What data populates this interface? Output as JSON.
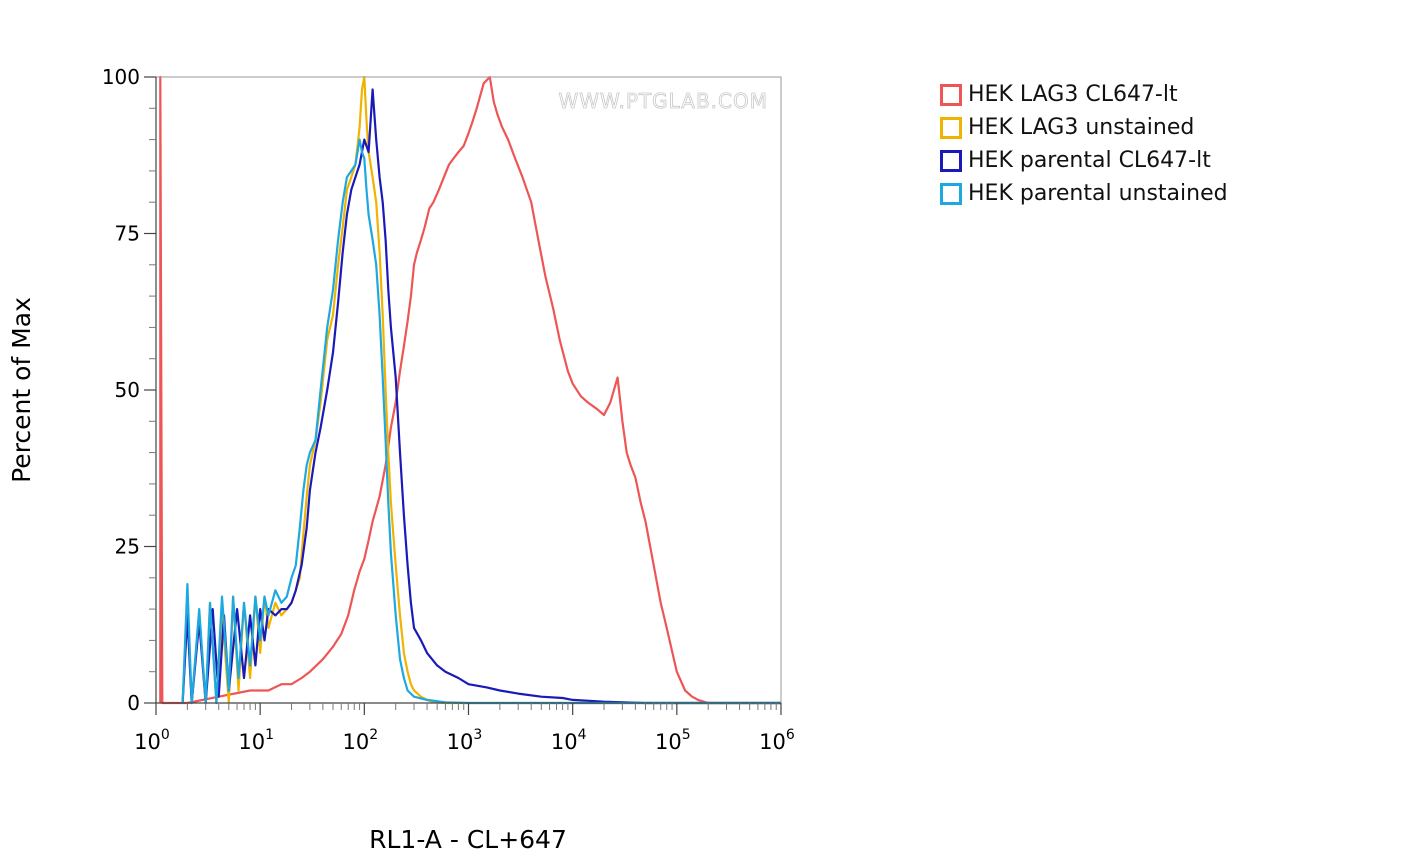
{
  "chart_data": {
    "type": "line",
    "watermark": "WWW.PTGLAB.COM",
    "xlabel": "RL1-A - CL+647",
    "ylabel": "Percent of Max",
    "xscale": "log",
    "xlim": [
      1,
      1000000
    ],
    "ylim": [
      0,
      100
    ],
    "xticks": [
      {
        "value": 1,
        "base": "10",
        "exp": "0"
      },
      {
        "value": 10,
        "base": "10",
        "exp": "1"
      },
      {
        "value": 100,
        "base": "10",
        "exp": "2"
      },
      {
        "value": 1000,
        "base": "10",
        "exp": "3"
      },
      {
        "value": 10000,
        "base": "10",
        "exp": "4"
      },
      {
        "value": 100000,
        "base": "10",
        "exp": "5"
      },
      {
        "value": 1000000,
        "base": "10",
        "exp": "6"
      }
    ],
    "yticks": [
      {
        "value": 0,
        "label": "0"
      },
      {
        "value": 25,
        "label": "25"
      },
      {
        "value": 50,
        "label": "50"
      },
      {
        "value": 75,
        "label": "75"
      },
      {
        "value": 100,
        "label": "100"
      }
    ],
    "grid": false,
    "legend_position": "right",
    "series": [
      {
        "name": "HEK LAG3 CL647-lt",
        "color": "#ee5555",
        "x": [
          1.1,
          1.1,
          1.15,
          2,
          4,
          8,
          12,
          16,
          20,
          25,
          30,
          40,
          50,
          60,
          70,
          80,
          90,
          100,
          110,
          120,
          140,
          160,
          180,
          200,
          220,
          240,
          260,
          280,
          300,
          320,
          350,
          380,
          420,
          460,
          520,
          580,
          650,
          720,
          800,
          900,
          1000,
          1100,
          1200,
          1400,
          1600,
          1750,
          1900,
          2100,
          2400,
          2800,
          3300,
          4000,
          4800,
          5500,
          6500,
          7500,
          9000,
          10000,
          12000,
          14000,
          17000,
          20000,
          23000,
          27000,
          30000,
          33000,
          36000,
          40000,
          45000,
          50000,
          60000,
          70000,
          80000,
          100000,
          120000,
          140000,
          160000,
          200000,
          300000,
          500000,
          1000000
        ],
        "y": [
          0,
          100,
          0,
          0,
          1,
          2,
          2,
          3,
          3,
          4,
          5,
          7,
          9,
          11,
          14,
          18,
          21,
          23,
          26,
          29,
          33,
          38,
          44,
          48,
          53,
          57,
          61,
          65,
          70,
          72,
          74,
          76,
          79,
          80,
          82,
          84,
          86,
          87,
          88,
          89,
          91,
          93,
          95,
          99,
          100,
          96,
          94,
          92,
          90,
          87,
          84,
          80,
          73,
          68,
          63,
          58,
          53,
          51,
          49,
          48,
          47,
          46,
          48,
          52,
          45,
          40,
          38,
          36,
          32,
          29,
          22,
          16,
          12,
          5,
          2,
          1,
          0.5,
          0,
          0,
          0,
          0
        ]
      },
      {
        "name": "HEK LAG3 unstained",
        "color": "#f0b400",
        "x": [
          1.8,
          2,
          2.2,
          2.6,
          3,
          3.3,
          3.8,
          4.3,
          5,
          5.5,
          6.2,
          7,
          8,
          9,
          10,
          11,
          12,
          14,
          16,
          18,
          20,
          22,
          24,
          26,
          28,
          30,
          34,
          38,
          44,
          50,
          56,
          62,
          68,
          75,
          82,
          90,
          95,
          100,
          105,
          110,
          120,
          130,
          140,
          150,
          160,
          170,
          180,
          200,
          220,
          240,
          260,
          280,
          300,
          350,
          400,
          450,
          500,
          600,
          1000,
          1000000
        ],
        "y": [
          0,
          15,
          0,
          14,
          0,
          16,
          0,
          15,
          0,
          17,
          2,
          16,
          4,
          17,
          8,
          17,
          12,
          16,
          14,
          15,
          16,
          18,
          20,
          27,
          33,
          38,
          42,
          48,
          58,
          62,
          70,
          76,
          82,
          84,
          86,
          92,
          98,
          100,
          93,
          88,
          84,
          80,
          72,
          62,
          50,
          40,
          32,
          22,
          14,
          8,
          5,
          3,
          2,
          1,
          0.5,
          0.2,
          0.1,
          0,
          0,
          0
        ]
      },
      {
        "name": "HEK parental CL647-lt",
        "color": "#1a1ab8",
        "x": [
          1.8,
          2,
          2.2,
          2.6,
          3,
          3.5,
          4,
          4.5,
          5,
          6,
          7,
          8,
          9,
          10,
          11,
          12,
          14,
          16,
          18,
          20,
          22,
          25,
          28,
          30,
          34,
          38,
          44,
          50,
          56,
          62,
          68,
          75,
          82,
          90,
          100,
          110,
          120,
          130,
          140,
          150,
          160,
          170,
          180,
          200,
          220,
          240,
          260,
          280,
          300,
          350,
          400,
          500,
          600,
          800,
          1000,
          1500,
          2000,
          3000,
          5000,
          8000,
          10000,
          20000,
          50000,
          100000,
          1000000
        ],
        "y": [
          0,
          14,
          0,
          13,
          0,
          15,
          1,
          14,
          2,
          15,
          4,
          14,
          6,
          15,
          10,
          15,
          14,
          15,
          15,
          16,
          18,
          22,
          28,
          34,
          40,
          44,
          50,
          56,
          64,
          72,
          78,
          82,
          84,
          86,
          90,
          88,
          98,
          90,
          84,
          80,
          74,
          66,
          60,
          52,
          40,
          30,
          22,
          16,
          12,
          10,
          8,
          6,
          5,
          4,
          3,
          2.5,
          2,
          1.5,
          1,
          0.8,
          0.5,
          0.2,
          0,
          0,
          0
        ]
      },
      {
        "name": "HEK parental unstained",
        "color": "#1ea8e0",
        "x": [
          1.8,
          2,
          2.2,
          2.6,
          3,
          3.3,
          3.8,
          4.3,
          5,
          5.5,
          6.2,
          7,
          8,
          9,
          10,
          11,
          12,
          14,
          16,
          18,
          20,
          22,
          24,
          26,
          28,
          30,
          34,
          38,
          44,
          50,
          56,
          62,
          68,
          75,
          82,
          90,
          95,
          100,
          105,
          110,
          120,
          130,
          140,
          150,
          160,
          170,
          180,
          200,
          220,
          240,
          260,
          300,
          400,
          600,
          1000,
          1000000
        ],
        "y": [
          0,
          19,
          0,
          15,
          0,
          16,
          0,
          17,
          2,
          17,
          4,
          16,
          6,
          17,
          10,
          17,
          14,
          18,
          16,
          17,
          20,
          22,
          28,
          34,
          38,
          40,
          42,
          50,
          60,
          66,
          74,
          80,
          84,
          85,
          86,
          90,
          88,
          87,
          82,
          78,
          74,
          70,
          62,
          52,
          42,
          32,
          24,
          14,
          7,
          4,
          2,
          1,
          0.5,
          0.1,
          0,
          0
        ]
      }
    ]
  }
}
